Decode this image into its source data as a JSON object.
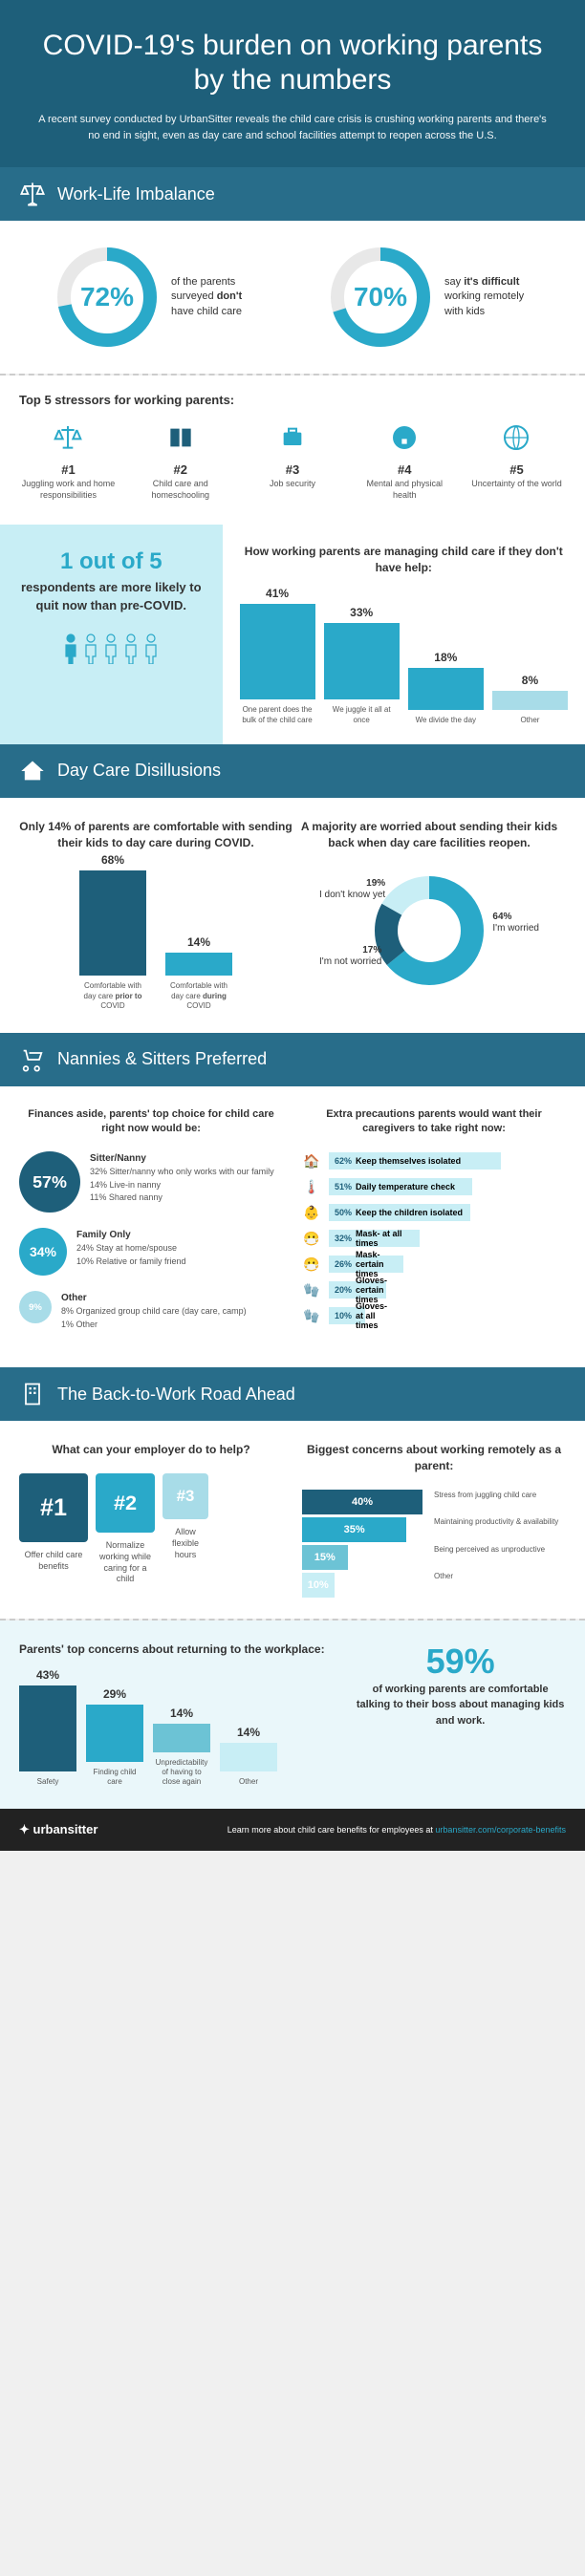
{
  "header": {
    "title": "COVID-19's burden on working parents by the numbers",
    "subtitle": "A recent survey conducted by UrbanSitter reveals the child care crisis is crushing working parents and there's no end in sight, even as day care and school facilities attempt to reopen across the U.S."
  },
  "colors": {
    "primary": "#2aa9c9",
    "dark": "#1e5f7a",
    "section": "#286d8a",
    "lightTeal": "#c8eef5",
    "paleTeal": "#eaf7fa",
    "medTeal": "#6cc3d5"
  },
  "section1": {
    "title": "Work-Life Imbalance",
    "donut1": {
      "pct": "72%",
      "val": 72,
      "text": "of the parents surveyed <b>don't</b> have child care"
    },
    "donut2": {
      "pct": "70%",
      "val": 70,
      "text": "say <b>it's difficult</b> working remotely with kids"
    },
    "stressorsTitle": "Top 5 stressors for working parents:",
    "stressors": [
      {
        "num": "#1",
        "label": "Juggling work and home responsibilities"
      },
      {
        "num": "#2",
        "label": "Child care and homeschooling"
      },
      {
        "num": "#3",
        "label": "Job security"
      },
      {
        "num": "#4",
        "label": "Mental and physical health"
      },
      {
        "num": "#5",
        "label": "Uncertainty of the world"
      }
    ],
    "quitStat": {
      "big": "1 out of 5",
      "rest": "respondents are more likely to quit now than pre-COVID."
    },
    "manageTitle": "How working parents are managing child care if they don't have help:",
    "manageBars": [
      {
        "val": "41%",
        "h": 100,
        "label": "One parent does the bulk of the child care"
      },
      {
        "val": "33%",
        "h": 80,
        "label": "We juggle it all at once"
      },
      {
        "val": "18%",
        "h": 44,
        "label": "We divide the day"
      },
      {
        "val": "8%",
        "h": 20,
        "label": "Other",
        "light": true
      }
    ]
  },
  "section2": {
    "title": "Day Care Disillusions",
    "leftTitle": "Only 14% of parents are comfortable with sending their kids to day care during COVID.",
    "leftBars": [
      {
        "val": "68%",
        "h": 110,
        "color": "#1e5f7a",
        "label": "Comfortable with day care <b>prior to</b> COVID"
      },
      {
        "val": "14%",
        "h": 24,
        "color": "#2aa9c9",
        "label": "Comfortable with day care <b>during</b> COVID"
      }
    ],
    "rightTitle": "A majority are worried about sending their kids back when day care facilities reopen.",
    "pie": [
      {
        "pct": "64%",
        "label": "I'm worried",
        "color": "#2aa9c9"
      },
      {
        "pct": "19%",
        "label": "I don't know yet",
        "color": "#1e5f7a"
      },
      {
        "pct": "17%",
        "label": "I'm not worried",
        "color": "#c8eef5"
      }
    ]
  },
  "section3": {
    "title": "Nannies & Sitters Preferred",
    "leftTitle": "Finances aside, parents' top choice for child care right now would be:",
    "circles": [
      {
        "pct": "57%",
        "size": 64,
        "color": "#1e5f7a",
        "title": "Sitter/Nanny",
        "lines": "32% Sitter/nanny who only works with our family\n14% Live-in nanny\n11% Shared nanny"
      },
      {
        "pct": "34%",
        "size": 50,
        "color": "#2aa9c9",
        "title": "Family Only",
        "lines": "24% Stay at home/spouse\n10% Relative or family friend"
      },
      {
        "pct": "9%",
        "size": 34,
        "color": "#a8dce8",
        "title": "Other",
        "lines": "8% Organized group child care (day care, camp)\n1% Other"
      }
    ],
    "rightTitle": "Extra precautions parents would want their caregivers to take right now:",
    "precautions": [
      {
        "pct": "62%",
        "w": 180,
        "label": "Keep themselves isolated"
      },
      {
        "pct": "51%",
        "w": 150,
        "label": "Daily temperature check"
      },
      {
        "pct": "50%",
        "w": 148,
        "label": "Keep the children isolated"
      },
      {
        "pct": "32%",
        "w": 95,
        "label": "Mask- at all times"
      },
      {
        "pct": "26%",
        "w": 78,
        "label": "Mask- certain times"
      },
      {
        "pct": "20%",
        "w": 60,
        "label": "Gloves- certain times"
      },
      {
        "pct": "10%",
        "w": 38,
        "label": "Gloves- at all times"
      }
    ]
  },
  "section4": {
    "title": "The Back-to-Work Road Ahead",
    "empTitle": "What can your employer do to help?",
    "empCards": [
      {
        "num": "#1",
        "size": 72,
        "color": "#1e5f7a",
        "label": "Offer child care benefits"
      },
      {
        "num": "#2",
        "size": 62,
        "color": "#2aa9c9",
        "label": "Normalize working while caring for a child"
      },
      {
        "num": "#3",
        "size": 48,
        "color": "#a8dce8",
        "label": "Allow flexible hours"
      }
    ],
    "concernTitle": "Biggest concerns about working remotely as a parent:",
    "concerns": [
      {
        "pct": "40%",
        "h": 90,
        "color": "#1e5f7a",
        "label": "Stress from juggling child care"
      },
      {
        "pct": "35%",
        "h": 78,
        "color": "#2aa9c9",
        "label": "Maintaining productivity & availability"
      },
      {
        "pct": "15%",
        "h": 34,
        "color": "#6cc3d5",
        "label": "Being perceived as unproductive"
      },
      {
        "pct": "10%",
        "h": 24,
        "color": "#c8eef5",
        "label": "Other"
      }
    ],
    "retTitle": "Parents' top concerns about returning to the workplace:",
    "retBars": [
      {
        "pct": "43%",
        "h": 90,
        "color": "#1e5f7a",
        "label": "Safety"
      },
      {
        "pct": "29%",
        "h": 60,
        "color": "#2aa9c9",
        "label": "Finding child care"
      },
      {
        "pct": "14%",
        "h": 30,
        "color": "#6cc3d5",
        "label": "Unpredictability of having to close again"
      },
      {
        "pct": "14%",
        "h": 30,
        "color": "#c8eef5",
        "label": "Other"
      }
    ],
    "talkStat": {
      "pct": "59%",
      "text": "of working parents are comfortable talking to their boss about managing kids and work."
    }
  },
  "footer": {
    "logo": "urbansitter",
    "text": "Learn more about child care benefits for employees at",
    "link": "urbansitter.com/corporate-benefits"
  }
}
